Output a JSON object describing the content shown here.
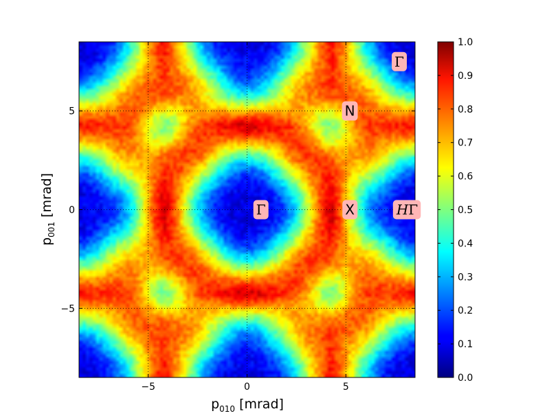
{
  "chart_data": {
    "type": "heatmap",
    "title": "",
    "xlabel": {
      "prefix": "p",
      "sub": "010",
      "suffix": " [mrad]"
    },
    "ylabel": {
      "prefix": "p",
      "sub": "001",
      "suffix": " [mrad]"
    },
    "xlim": [
      -8.5,
      8.5
    ],
    "ylim": [
      -8.5,
      8.5
    ],
    "x_ticks": [
      -5,
      0,
      5
    ],
    "y_ticks": [
      -5,
      0,
      5
    ],
    "x_tick_labels": [
      "−5",
      "0",
      "5"
    ],
    "y_tick_labels": [
      "−5",
      "0",
      "5"
    ],
    "grid": true,
    "grid_style": "dotted",
    "colormap": "jet",
    "colorbar": {
      "range": [
        0.0,
        1.0
      ],
      "ticks": [
        0.0,
        0.1,
        0.2,
        0.3,
        0.4,
        0.5,
        0.6,
        0.7,
        0.8,
        0.9,
        1.0
      ],
      "tick_labels": [
        "0.0",
        "0.1",
        "0.2",
        "0.3",
        "0.4",
        "0.5",
        "0.6",
        "0.7",
        "0.8",
        "0.9",
        "1.0"
      ]
    },
    "symmetry_points": [
      {
        "label": "Γ",
        "x": 0.7,
        "y": 0.0,
        "style": "math"
      },
      {
        "label": "X",
        "x": 5.2,
        "y": 0.0,
        "style": "sans"
      },
      {
        "label": "N",
        "x": 5.2,
        "y": 5.0,
        "style": "sans"
      },
      {
        "label": "Γ",
        "x": 7.7,
        "y": 7.5,
        "style": "math"
      },
      {
        "label": "HΓ",
        "x": 8.1,
        "y": 0.0,
        "style": "math-italic"
      }
    ],
    "annotation_bg": "#ffb6b6"
  }
}
